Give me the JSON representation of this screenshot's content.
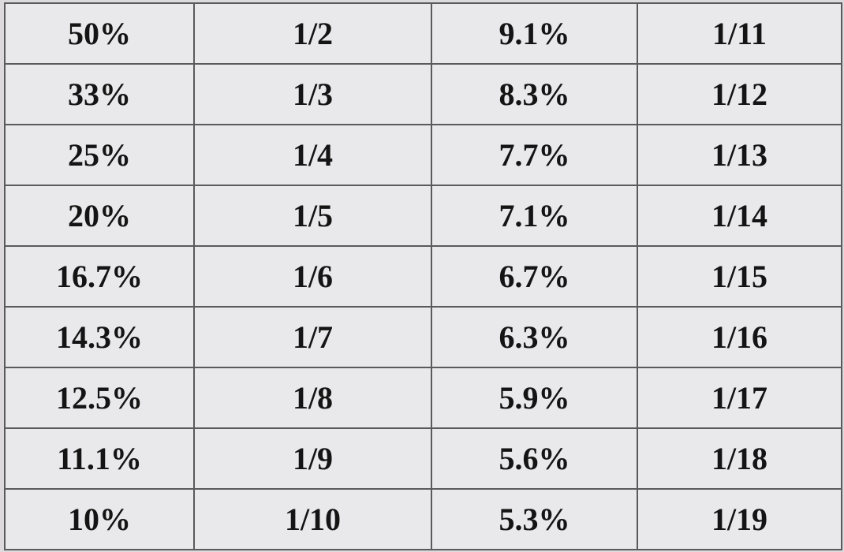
{
  "rows": [
    [
      "50%",
      "1/2",
      "9.1%",
      "1/11"
    ],
    [
      "33%",
      "1/3",
      "8.3%",
      "1/12"
    ],
    [
      "25%",
      "1/4",
      "7.7%",
      "1/13"
    ],
    [
      "20%",
      "1/5",
      "7.1%",
      "1/14"
    ],
    [
      "16.7%",
      "1/6",
      "6.7%",
      "1/15"
    ],
    [
      "14.3%",
      "1/7",
      "6.3%",
      "1/16"
    ],
    [
      "12.5%",
      "1/8",
      "5.9%",
      "1/17"
    ],
    [
      "11.1%",
      "1/9",
      "5.6%",
      "1/18"
    ],
    [
      "10%",
      "1/10",
      "5.3%",
      "1/19"
    ]
  ],
  "colors": {
    "background": "#dcdadd",
    "cell_background": "#e9e8ea",
    "border": "#5a5a5a",
    "text": "#141414"
  }
}
